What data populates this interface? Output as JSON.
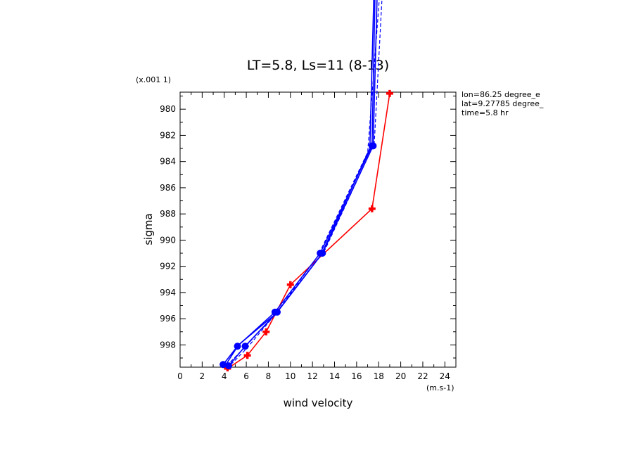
{
  "chart_data": {
    "type": "line",
    "title": "LT=5.8, Ls=11 (8-13)",
    "xlabel": "wind velocity",
    "ylabel": "sigma",
    "x_unit": "(m.s-1)",
    "y_scale_label": "(x.001 1)",
    "xlim": [
      0,
      25
    ],
    "ylim": [
      999.7,
      978.7
    ],
    "x_ticks": [
      0,
      2,
      4,
      6,
      8,
      10,
      12,
      14,
      16,
      18,
      20,
      22,
      24
    ],
    "x_tick_labels": [
      "0",
      "2",
      "4",
      "6",
      "8",
      "10",
      "12",
      "14",
      "16",
      "18",
      "20",
      "22",
      "24"
    ],
    "y_ticks": [
      980,
      982,
      984,
      986,
      988,
      990,
      992,
      994,
      996,
      998
    ],
    "y_tick_labels": [
      "980",
      "982",
      "984",
      "986",
      "988",
      "990",
      "992",
      "994",
      "996",
      "998"
    ],
    "info_text": [
      "lon=86.25 degree_e",
      "lat=9.27785 degree_",
      "time=5.8 hr"
    ],
    "grid": false,
    "series": [
      {
        "color": "#ff0000",
        "dash": "solid",
        "marker": "plus",
        "x": [
          4.3,
          6.1,
          7.8,
          10.0,
          17.4,
          19.0
        ],
        "y": [
          999.8,
          998.8,
          997.0,
          993.4,
          987.6,
          978.8
        ]
      },
      {
        "color": "#0000ff",
        "dash": "solid",
        "marker": "circle",
        "x": [
          3.9,
          5.2,
          8.6,
          12.7,
          17.4,
          17.7
        ],
        "y": [
          999.5,
          998.1,
          995.5,
          991.0,
          982.8,
          970.0
        ]
      },
      {
        "color": "#0000ff",
        "dash": "solid",
        "marker": "circle",
        "x": [
          4.4,
          5.9,
          8.8,
          12.9,
          17.5,
          17.9
        ],
        "y": [
          999.6,
          998.1,
          995.5,
          991.0,
          982.8,
          970.0
        ]
      },
      {
        "color": "#0000ff",
        "dash": "dashed",
        "marker": "none",
        "x": [
          4.2,
          5.5,
          8.5,
          12.5,
          17.0,
          18.2
        ],
        "y": [
          999.6,
          998.5,
          995.8,
          991.2,
          983.3,
          970.0
        ]
      },
      {
        "color": "#0000ff",
        "dash": "dashed",
        "marker": "none",
        "x": [
          4.6,
          6.0,
          8.9,
          13.1,
          17.6,
          18.4
        ],
        "y": [
          999.5,
          998.3,
          995.4,
          990.8,
          982.6,
          970.0
        ]
      },
      {
        "color": "#0000ff",
        "dash": "solid",
        "marker": "none",
        "x": [
          4.0,
          5.3,
          8.7,
          12.8,
          17.2,
          17.6
        ],
        "y": [
          999.7,
          998.0,
          995.6,
          991.1,
          983.0,
          970.0
        ]
      }
    ]
  }
}
